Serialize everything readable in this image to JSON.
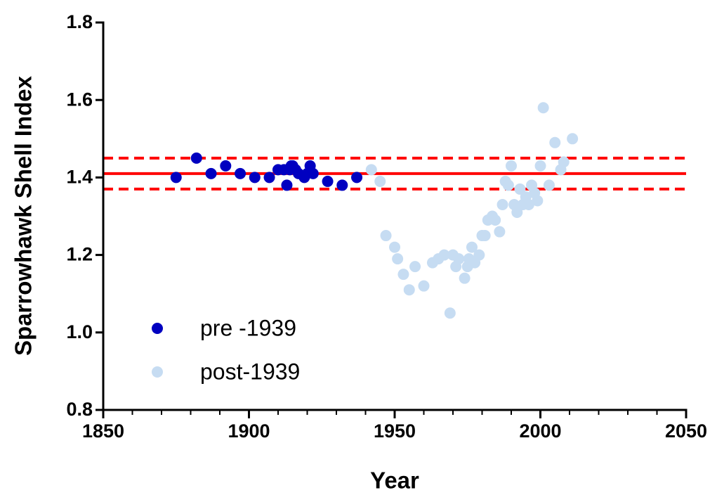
{
  "chart_data": {
    "type": "scatter",
    "x_label": "Year",
    "y_label": "Sparrowhawk Shell Index",
    "xlim": [
      1850,
      2050
    ],
    "xticks": [
      1850,
      1900,
      1950,
      2000,
      2050
    ],
    "x_minor_ticks": [
      1860,
      1870,
      1880,
      1890,
      1910,
      1920,
      1930,
      1940,
      1960,
      1970,
      1980,
      1990,
      2010,
      2020,
      2030,
      2040
    ],
    "ylim": [
      0.8,
      1.8
    ],
    "yticks": [
      0.8,
      {
        "value": 1,
        "label": "1.0"
      },
      1.2,
      1.4,
      1.6,
      1.8
    ],
    "legend": "lower left",
    "reference_lines": [
      {
        "value": 1.41,
        "style": "solid",
        "color": "#ff0000"
      },
      {
        "value": 1.45,
        "style": "dashed",
        "color": "#ff0000"
      },
      {
        "value": 1.37,
        "style": "dashed",
        "color": "#ff0000"
      }
    ],
    "series": [
      {
        "name": "pre -1939",
        "color": "#0000c0",
        "x": [
          1875,
          1882,
          1887,
          1892,
          1897,
          1902,
          1907,
          1910,
          1912,
          1913,
          1914,
          1914.5,
          1915,
          1916,
          1917,
          1919,
          1920,
          1921,
          1922,
          1927,
          1932,
          1937
        ],
        "values": [
          1.4,
          1.45,
          1.41,
          1.43,
          1.41,
          1.4,
          1.4,
          1.42,
          1.42,
          1.38,
          1.42,
          1.43,
          1.43,
          1.42,
          1.41,
          1.4,
          1.41,
          1.43,
          1.41,
          1.39,
          1.38,
          1.4
        ]
      },
      {
        "name": "post-1939",
        "color": "#c6dcf2",
        "x": [
          1942,
          1945,
          1947,
          1950,
          1951,
          1953,
          1955,
          1957,
          1960,
          1963,
          1965,
          1967,
          1969,
          1970,
          1971,
          1972,
          1974,
          1975,
          1975.5,
          1976.5,
          1977.5,
          1979,
          1980,
          1981,
          1982,
          1983.5,
          1984.5,
          1986,
          1987,
          1988,
          1989,
          1990,
          1991,
          1992,
          1993,
          1994,
          1995,
          1996,
          1997,
          1998,
          1999,
          2000,
          2001,
          2003,
          2005,
          2007,
          2008,
          2011
        ],
        "values": [
          1.42,
          1.39,
          1.25,
          1.22,
          1.19,
          1.15,
          1.11,
          1.17,
          1.12,
          1.18,
          1.19,
          1.2,
          1.05,
          1.2,
          1.17,
          1.19,
          1.14,
          1.17,
          1.19,
          1.22,
          1.18,
          1.2,
          1.25,
          1.25,
          1.29,
          1.3,
          1.29,
          1.26,
          1.33,
          1.39,
          1.38,
          1.43,
          1.33,
          1.31,
          1.37,
          1.33,
          1.35,
          1.33,
          1.38,
          1.36,
          1.34,
          1.43,
          1.58,
          1.38,
          1.49,
          1.42,
          1.44,
          1.5
        ]
      }
    ]
  }
}
